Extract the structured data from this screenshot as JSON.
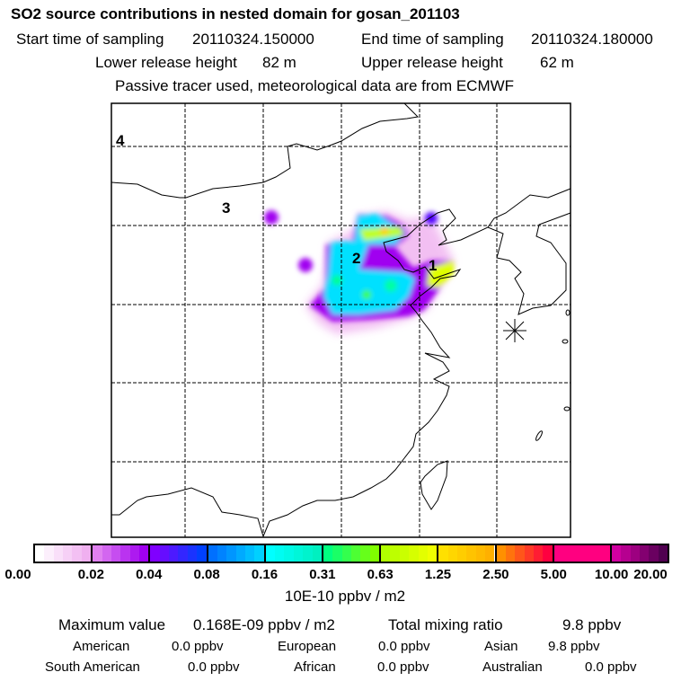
{
  "header": {
    "title": "SO2 source contributions in nested domain for gosan_201103",
    "start_label": "Start time of sampling",
    "start_value": "20110324.150000",
    "end_label": "End time of sampling",
    "end_value": "20110324.180000",
    "lower_label": "Lower release height",
    "lower_value": "82 m",
    "upper_label": "Upper release height",
    "upper_value": "62 m",
    "note": "Passive tracer used, meteorological data are from ECMWF"
  },
  "map": {
    "labels": [
      "4",
      "3",
      "2",
      "1"
    ],
    "receptor_marker": "asterisk-icon"
  },
  "colorbar": {
    "ticks": [
      "0.00",
      "0.02",
      "0.04",
      "0.08",
      "0.16",
      "0.31",
      "0.63",
      "1.25",
      "2.50",
      "5.00",
      "10.00",
      "20.00"
    ],
    "segments": [
      [
        "#ffffff",
        "#f0b0f0"
      ],
      [
        "#e080f0",
        "#a000f0"
      ],
      [
        "#8000ff",
        "#0040ff"
      ],
      [
        "#0070ff",
        "#00d0ff"
      ],
      [
        "#00ffff",
        "#00f0c0"
      ],
      [
        "#00ff80",
        "#80ff00"
      ],
      [
        "#b0ff00",
        "#f0ff00"
      ],
      [
        "#ffe000",
        "#ffb000"
      ],
      [
        "#ff9000",
        "#ff0040"
      ],
      [
        "#ff0080",
        "#ff0080"
      ],
      [
        "#d000a0",
        "#500050"
      ]
    ],
    "unit": "10E-10 ppbv / m2"
  },
  "footer": {
    "max_label": "Maximum value",
    "max_value": "0.168E-09 ppbv / m2",
    "total_label": "Total mixing ratio",
    "total_value": "9.8 ppbv",
    "rows": [
      [
        {
          "label": "American",
          "value": "0.0 ppbv"
        },
        {
          "label": "European",
          "value": "0.0 ppbv"
        },
        {
          "label": "Asian",
          "value": "9.8 ppbv"
        }
      ],
      [
        {
          "label": "South American",
          "value": "0.0 ppbv"
        },
        {
          "label": "African",
          "value": "0.0 ppbv"
        },
        {
          "label": "Australian",
          "value": "0.0 ppbv"
        }
      ]
    ]
  }
}
